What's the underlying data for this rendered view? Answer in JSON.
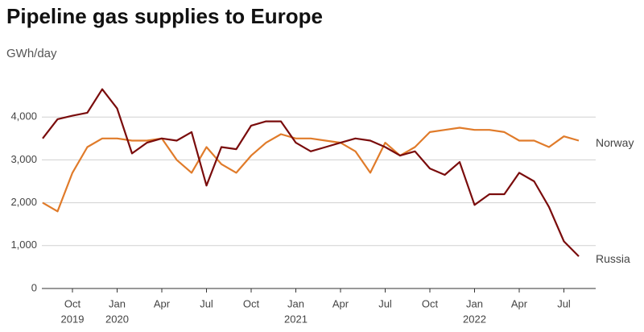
{
  "chart_data": {
    "type": "line",
    "title": "Pipeline gas supplies to Europe",
    "y_label": "GWh/day",
    "x": [
      "2019-08",
      "2019-09",
      "2019-10",
      "2019-11",
      "2019-12",
      "2020-01",
      "2020-02",
      "2020-03",
      "2020-04",
      "2020-05",
      "2020-06",
      "2020-07",
      "2020-08",
      "2020-09",
      "2020-10",
      "2020-11",
      "2020-12",
      "2021-01",
      "2021-02",
      "2021-03",
      "2021-04",
      "2021-05",
      "2021-06",
      "2021-07",
      "2021-08",
      "2021-09",
      "2021-10",
      "2021-11",
      "2021-12",
      "2022-01",
      "2022-02",
      "2022-03",
      "2022-04",
      "2022-05",
      "2022-06",
      "2022-07",
      "2022-08"
    ],
    "series": [
      {
        "name": "Norway",
        "color": "#e07b2a",
        "values": [
          2000,
          1800,
          2700,
          3300,
          3500,
          3500,
          3450,
          3450,
          3500,
          3000,
          2700,
          3300,
          2900,
          2700,
          3100,
          3400,
          3600,
          3500,
          3500,
          3450,
          3400,
          3200,
          2700,
          3400,
          3100,
          3300,
          3650,
          3700,
          3750,
          3700,
          3700,
          3650,
          3450,
          3450,
          3300,
          3550,
          3450
        ]
      },
      {
        "name": "Russia",
        "color": "#7a0c0c",
        "values": [
          3500,
          3950,
          4030,
          4100,
          4650,
          4200,
          3150,
          3400,
          3500,
          3450,
          3650,
          2400,
          3300,
          3250,
          3800,
          3900,
          3900,
          3400,
          3200,
          3300,
          3400,
          3500,
          3450,
          3300,
          3100,
          3200,
          2800,
          2650,
          2950,
          1950,
          2200,
          2200,
          2700,
          2500,
          1900,
          1100,
          750
        ]
      }
    ],
    "ylim": [
      0,
      4700
    ],
    "yticks": [
      0,
      {
        "value": 1000,
        "label": "1,000"
      },
      {
        "value": 2000,
        "label": "2,000"
      },
      {
        "value": 3000,
        "label": "3,000"
      },
      {
        "value": 4000,
        "label": "4,000"
      }
    ],
    "xticks": [
      {
        "value": "2019-10",
        "label": "Oct"
      },
      {
        "value": "2020-01",
        "label": "Jan"
      },
      {
        "value": "2020-04",
        "label": "Apr"
      },
      {
        "value": "2020-07",
        "label": "Jul"
      },
      {
        "value": "2020-10",
        "label": "Oct"
      },
      {
        "value": "2021-01",
        "label": "Jan"
      },
      {
        "value": "2021-04",
        "label": "Apr"
      },
      {
        "value": "2021-07",
        "label": "Jul"
      },
      {
        "value": "2021-10",
        "label": "Oct"
      },
      {
        "value": "2022-01",
        "label": "Jan"
      },
      {
        "value": "2022-04",
        "label": "Apr"
      },
      {
        "value": "2022-07",
        "label": "Jul"
      }
    ],
    "year_labels": [
      {
        "value": "2019-10",
        "label": "2019"
      },
      {
        "value": "2020-01",
        "label": "2020"
      },
      {
        "value": "2021-01",
        "label": "2021"
      },
      {
        "value": "2022-01",
        "label": "2022"
      }
    ],
    "grid": true
  }
}
